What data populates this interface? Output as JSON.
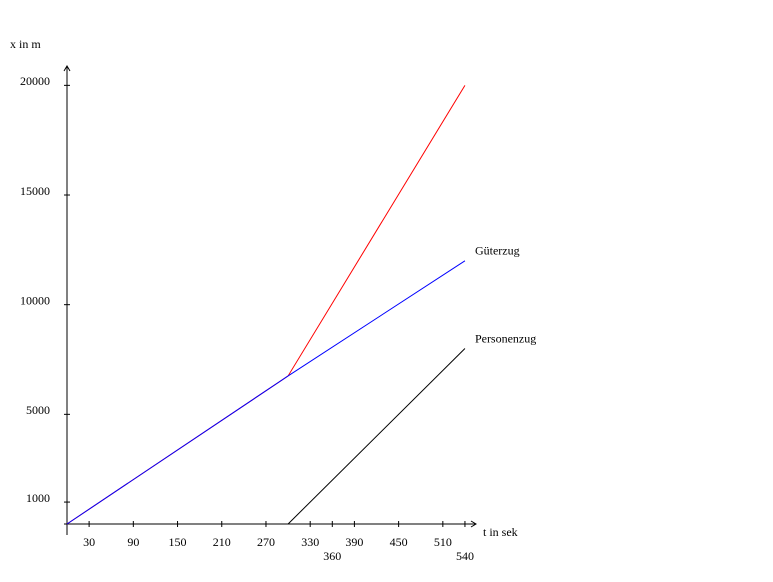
{
  "chart_data": {
    "type": "line",
    "x_label": "t in sek",
    "y_label": "x in m",
    "xlim": [
      0,
      555
    ],
    "ylim": [
      0,
      20700
    ],
    "xticks": [
      30,
      90,
      150,
      210,
      270,
      330,
      360,
      390,
      450,
      510,
      540
    ],
    "yticks": [
      1000,
      5000,
      10000,
      15000,
      20000
    ],
    "series": [
      {
        "color": "#ff0000",
        "x": [
          0,
          300,
          540
        ],
        "values": [
          0,
          6750,
          20000
        ]
      },
      {
        "name": "Güterzug",
        "color": "#0000ff",
        "x": [
          0,
          300,
          540
        ],
        "values": [
          0,
          6750,
          12000
        ]
      },
      {
        "name": "Personenzug",
        "color": "#000000",
        "x": [
          300,
          540
        ],
        "values": [
          0,
          8000
        ]
      }
    ]
  }
}
